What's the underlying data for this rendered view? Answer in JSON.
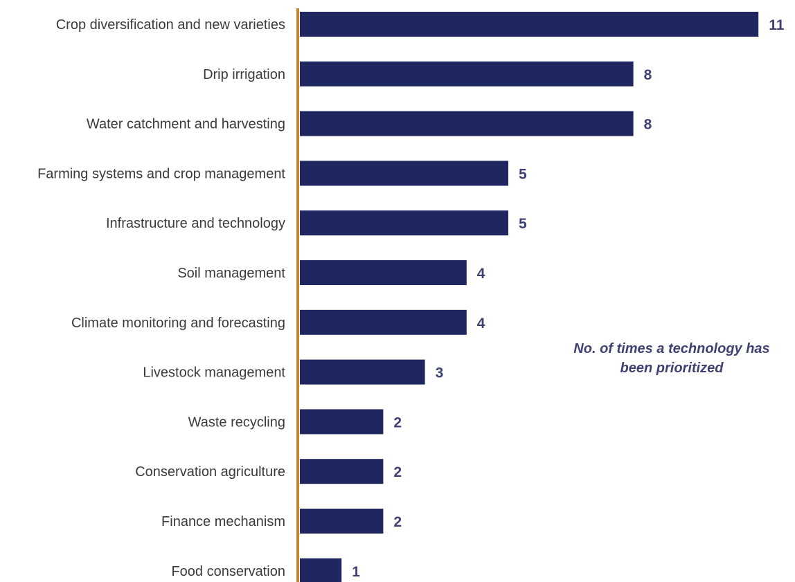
{
  "chart_data": {
    "type": "bar",
    "orientation": "horizontal",
    "categories": [
      "Crop diversification and new varieties",
      "Drip irrigation",
      "Water catchment and harvesting",
      "Farming systems and crop management",
      "Infrastructure and technology",
      "Soil management",
      "Climate monitoring and forecasting",
      "Livestock management",
      "Waste recycling",
      "Conservation agriculture",
      "Finance mechanism",
      "Food conservation"
    ],
    "values": [
      11,
      8,
      8,
      5,
      5,
      4,
      4,
      3,
      2,
      2,
      2,
      1
    ],
    "data_labels": [
      "11",
      "8",
      "8",
      "5",
      "5",
      "4",
      "4",
      "3",
      "2",
      "2",
      "2",
      "1"
    ],
    "xlim": [
      0,
      11
    ],
    "grid": false,
    "legend": "none",
    "annotation": {
      "line1": "No. of times a technology has",
      "line2": "been prioritized"
    },
    "colors": {
      "bar": "#1f2660",
      "axis": "#c08a2c",
      "value_label": "#3f4173",
      "category_label": "#3a3a3a",
      "annotation": "#3f4173"
    }
  }
}
